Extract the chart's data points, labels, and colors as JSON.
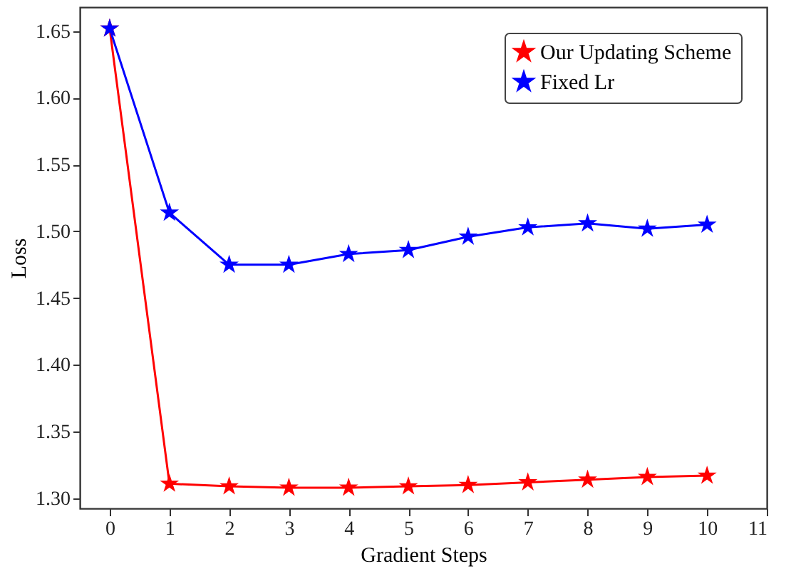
{
  "chart_data": {
    "type": "line",
    "xlabel": "Gradient Steps",
    "ylabel": "Loss",
    "x": [
      0,
      1,
      2,
      3,
      4,
      5,
      6,
      7,
      8,
      9,
      10
    ],
    "series": [
      {
        "name": "Our Updating Scheme",
        "color": "#ff0000",
        "values": [
          1.652,
          1.311,
          1.309,
          1.308,
          1.308,
          1.309,
          1.31,
          1.312,
          1.314,
          1.316,
          1.317
        ]
      },
      {
        "name": "Fixed Lr",
        "color": "#0000ff",
        "values": [
          1.652,
          1.514,
          1.475,
          1.475,
          1.483,
          1.486,
          1.496,
          1.503,
          1.506,
          1.502,
          1.505
        ]
      }
    ],
    "xlim": [
      -0.5,
      11
    ],
    "xticks": [
      0,
      1,
      2,
      3,
      4,
      5,
      6,
      7,
      8,
      9,
      10,
      11
    ],
    "ylim": [
      1.2925,
      1.668
    ],
    "yticks": [
      {
        "value": 1.3,
        "label": "1.30"
      },
      1.35,
      {
        "value": 1.4,
        "label": "1.40"
      },
      1.45,
      {
        "value": 1.5,
        "label": "1.50"
      },
      1.55,
      {
        "value": 1.6,
        "label": "1.60"
      },
      1.65
    ],
    "grid": false,
    "legend": "top right",
    "marker": "star",
    "line_style": "solid"
  }
}
